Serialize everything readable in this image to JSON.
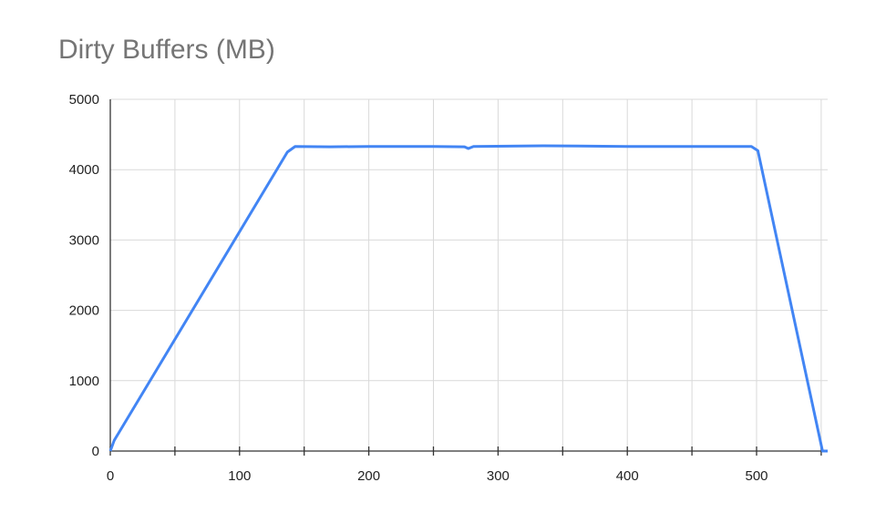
{
  "chart_data": {
    "type": "line",
    "title": "Dirty Buffers (MB)",
    "xlabel": "",
    "ylabel": "",
    "xlim": [
      0,
      555
    ],
    "ylim": [
      0,
      5000
    ],
    "x_ticks": [
      0,
      100,
      200,
      300,
      400,
      500
    ],
    "y_ticks": [
      0,
      1000,
      2000,
      3000,
      4000,
      5000
    ],
    "grid": true,
    "line_color": "#4285f4",
    "series": [
      {
        "points": [
          [
            0,
            0
          ],
          [
            3,
            150
          ],
          [
            137,
            4250
          ],
          [
            143,
            4330
          ],
          [
            170,
            4325
          ],
          [
            200,
            4330
          ],
          [
            250,
            4330
          ],
          [
            274,
            4325
          ],
          [
            277,
            4300
          ],
          [
            281,
            4330
          ],
          [
            335,
            4340
          ],
          [
            400,
            4330
          ],
          [
            450,
            4330
          ],
          [
            496,
            4330
          ],
          [
            501,
            4270
          ],
          [
            551,
            0
          ],
          [
            555,
            0
          ]
        ]
      }
    ]
  }
}
